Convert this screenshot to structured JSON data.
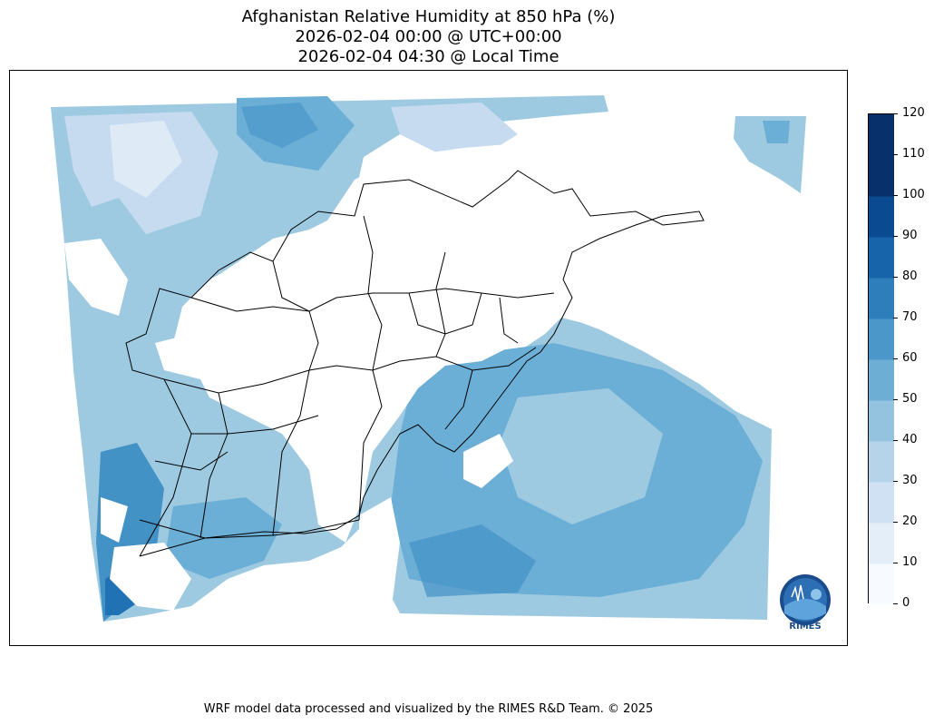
{
  "title": {
    "line1": "Afghanistan Relative Humidity at 850 hPa (%)",
    "line2": "2026-02-04 00:00 @ UTC+00:00",
    "line3": "2026-02-04 04:30 @ Local Time"
  },
  "colorbar": {
    "ticks": [
      "0",
      "10",
      "20",
      "30",
      "40",
      "50",
      "60",
      "70",
      "80",
      "90",
      "100",
      "110",
      "120"
    ],
    "colors": [
      "#f7fbff",
      "#e3eef9",
      "#cfe1f2",
      "#b5d4e9",
      "#93c3df",
      "#6daed5",
      "#4b97c9",
      "#2f7ebc",
      "#1864aa",
      "#0a4a90",
      "#08306b",
      "#08306b"
    ]
  },
  "logo": {
    "text": "RIMES"
  },
  "footer": "WRF model data processed and visualized by the RIMES R&D Team. © 2025"
}
